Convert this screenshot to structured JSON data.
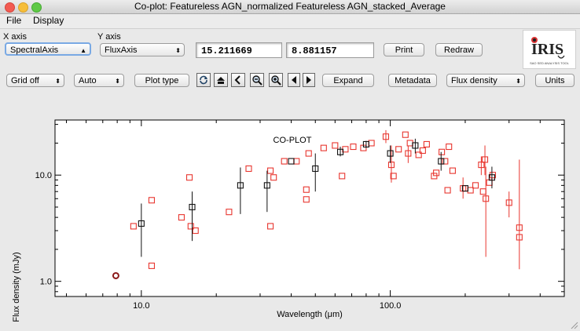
{
  "window": {
    "title": "Co-plot:  Featureless AGN_normalized Featureless AGN_stacked_Average"
  },
  "menu": {
    "file": "File",
    "display": "Display"
  },
  "axes_select": {
    "x_label": "X axis",
    "x_value": "SpectralAxis",
    "y_label": "Y axis",
    "y_value": "FluxAxis"
  },
  "coords": {
    "x": "15.211669",
    "y": "8.881157"
  },
  "buttons": {
    "print": "Print",
    "redraw": "Redraw",
    "plot_type": "Plot type",
    "expand": "Expand",
    "metadata": "Metadata",
    "units": "Units"
  },
  "toolbar": {
    "grid": "Grid off",
    "scale": "Auto",
    "flux": "Flux density"
  },
  "logo": {
    "text": "IRIS",
    "subtitle": "SAO SED ANALYSIS TOOL"
  },
  "icons": [
    "refresh-icon",
    "home-icon",
    "back-icon",
    "zoom-out-icon",
    "zoom-in-icon",
    "pan-left-icon",
    "pan-right-icon"
  ],
  "colors": {
    "normalized": "#e8362f",
    "stacked": "#111111",
    "highlight": "#8b1a1a"
  },
  "chart_data": {
    "type": "scatter",
    "title": "CO-PLOT",
    "xlabel": "Wavelength (μm)",
    "ylabel": "Flux density (mJy)",
    "x_scale": "log",
    "y_scale": "log",
    "xlim": [
      4.5,
      500
    ],
    "ylim": [
      0.72,
      33
    ],
    "xticks": [
      {
        "v": 10,
        "label": "10.0"
      },
      {
        "v": 100,
        "label": "100.0"
      }
    ],
    "yticks": [
      {
        "v": 1,
        "label": "1.0"
      },
      {
        "v": 10,
        "label": "10.0"
      }
    ],
    "grid": false,
    "series": [
      {
        "color": "#e8362f",
        "points": [
          {
            "x": 9.3,
            "y": 3.3
          },
          {
            "x": 11.0,
            "y": 5.8
          },
          {
            "x": 11.0,
            "y": 1.4
          },
          {
            "x": 14.5,
            "y": 4.0
          },
          {
            "x": 15.6,
            "y": 9.5
          },
          {
            "x": 15.8,
            "y": 3.3
          },
          {
            "x": 16.5,
            "y": 3.0
          },
          {
            "x": 22.5,
            "y": 4.5
          },
          {
            "x": 27.0,
            "y": 11.5
          },
          {
            "x": 33.0,
            "y": 11.0
          },
          {
            "x": 34.0,
            "y": 9.5
          },
          {
            "x": 33.0,
            "y": 3.3
          },
          {
            "x": 37.5,
            "y": 13.5
          },
          {
            "x": 42.0,
            "y": 13.5
          },
          {
            "x": 46.0,
            "y": 7.3
          },
          {
            "x": 46.0,
            "y": 5.9
          },
          {
            "x": 47.0,
            "y": 16.0
          },
          {
            "x": 54.0,
            "y": 18.0
          },
          {
            "x": 60.0,
            "y": 19.0
          },
          {
            "x": 64.0,
            "y": 9.8
          },
          {
            "x": 66.0,
            "y": 17.5
          },
          {
            "x": 71.0,
            "y": 18.5
          },
          {
            "x": 78.0,
            "y": 18.0
          },
          {
            "x": 84.0,
            "y": 20.0
          },
          {
            "x": 96.0,
            "y": 23.0,
            "err": [
              20.0,
              26.5
            ]
          },
          {
            "x": 101.0,
            "y": 12.5,
            "err": [
              8.5,
              19.0
            ]
          },
          {
            "x": 103.0,
            "y": 9.8
          },
          {
            "x": 108.0,
            "y": 17.5
          },
          {
            "x": 115.0,
            "y": 24.0
          },
          {
            "x": 118.0,
            "y": 16.0,
            "err": [
              13.0,
              19.0
            ]
          },
          {
            "x": 120.0,
            "y": 20.0
          },
          {
            "x": 130.0,
            "y": 15.5
          },
          {
            "x": 135.0,
            "y": 17.0
          },
          {
            "x": 140.0,
            "y": 19.5
          },
          {
            "x": 150.0,
            "y": 9.8
          },
          {
            "x": 153.0,
            "y": 10.5
          },
          {
            "x": 161.0,
            "y": 16.5
          },
          {
            "x": 166.0,
            "y": 13.5
          },
          {
            "x": 172.0,
            "y": 18.5
          },
          {
            "x": 170.0,
            "y": 7.2
          },
          {
            "x": 178.0,
            "y": 11.0
          },
          {
            "x": 196.0,
            "y": 7.5,
            "err": [
              6.0,
              9.5
            ]
          },
          {
            "x": 210.0,
            "y": 7.2
          },
          {
            "x": 220.0,
            "y": 8.0
          },
          {
            "x": 232.0,
            "y": 12.5,
            "err": [
              10.0,
              15.0
            ]
          },
          {
            "x": 236.0,
            "y": 7.0
          },
          {
            "x": 240.0,
            "y": 14.0,
            "err": [
              10.0,
              19.0
            ]
          },
          {
            "x": 242.0,
            "y": 6.0,
            "err": [
              1.7,
              12.0
            ]
          },
          {
            "x": 250.0,
            "y": 8.5
          },
          {
            "x": 258.0,
            "y": 10.0
          },
          {
            "x": 300.0,
            "y": 5.5,
            "err": [
              4.0,
              7.0
            ]
          },
          {
            "x": 330.0,
            "y": 3.2
          },
          {
            "x": 330.0,
            "y": 2.6,
            "err": [
              1.3,
              14.0
            ]
          }
        ]
      },
      {
        "color": "#111111",
        "points": [
          {
            "x": 10.0,
            "y": 3.5,
            "err": [
              1.7,
              5.4
            ]
          },
          {
            "x": 16.0,
            "y": 5.0,
            "err": [
              2.4,
              7.0
            ]
          },
          {
            "x": 25.0,
            "y": 8.0,
            "err": [
              4.3,
              11.8
            ]
          },
          {
            "x": 32.0,
            "y": 8.0,
            "err": [
              4.5,
              11.0
            ]
          },
          {
            "x": 40.0,
            "y": 13.5
          },
          {
            "x": 50.0,
            "y": 11.5,
            "err": [
              7.0,
              16.0
            ]
          },
          {
            "x": 63.0,
            "y": 16.5,
            "err": [
              15.0,
              18.5
            ]
          },
          {
            "x": 80.0,
            "y": 19.5,
            "err": [
              18.0,
              21.0
            ]
          },
          {
            "x": 100.0,
            "y": 16.0,
            "err": [
              13.0,
              19.0
            ]
          },
          {
            "x": 126.0,
            "y": 19.0,
            "err": [
              16.0,
              22.0
            ]
          },
          {
            "x": 160.0,
            "y": 13.5,
            "err": [
              11.0,
              16.5
            ]
          },
          {
            "x": 200.0,
            "y": 7.5
          },
          {
            "x": 256.0,
            "y": 9.5,
            "err": [
              7.5,
              12.0
            ]
          }
        ]
      },
      {
        "color": "#8b1a1a",
        "points": [
          {
            "x": 7.9,
            "y": 1.13
          }
        ]
      }
    ]
  }
}
